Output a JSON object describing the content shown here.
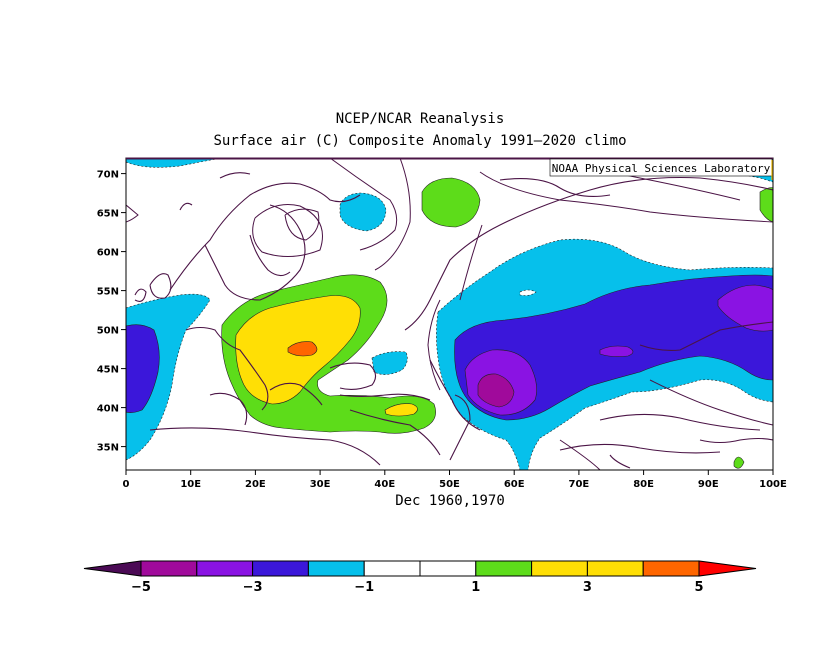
{
  "title_line1": "NCEP/NCAR Reanalysis",
  "title_line2": "Surface air (C) Composite Anomaly 1991–2020 climo",
  "credit": "NOAA Physical Sciences Laboratory",
  "period_label": "Dec 1960,1970",
  "map": {
    "lon_labels": [
      "0",
      "10E",
      "20E",
      "30E",
      "40E",
      "50E",
      "60E",
      "70E",
      "80E",
      "90E",
      "100E"
    ],
    "lat_labels": [
      "70N",
      "65N",
      "60N",
      "55N",
      "50N",
      "45N",
      "40N",
      "35N"
    ],
    "lon_range": [
      0,
      100
    ],
    "lat_range": [
      32,
      72
    ]
  },
  "colorbar": {
    "labels": [
      "−5",
      "−3",
      "−1",
      "1",
      "3",
      "5"
    ],
    "colors": [
      "#4b0a55",
      "#a00a9b",
      "#8a13e3",
      "#3b17da",
      "#06c0eb",
      "#ffffff",
      "#ffffff",
      "#5ddc1a",
      "#ffdf05",
      "#ffdf05",
      "#ff6600",
      "#ff0000"
    ]
  },
  "palette": {
    "strong_cold": "#a00a9b",
    "cold_2": "#8a13e3",
    "cold_3": "#3b17da",
    "cold_1": "#06c0eb",
    "warm_1": "#5ddc1a",
    "warm_2": "#ffdf05",
    "warm_4": "#ff6600",
    "coast": "#4b1446"
  }
}
